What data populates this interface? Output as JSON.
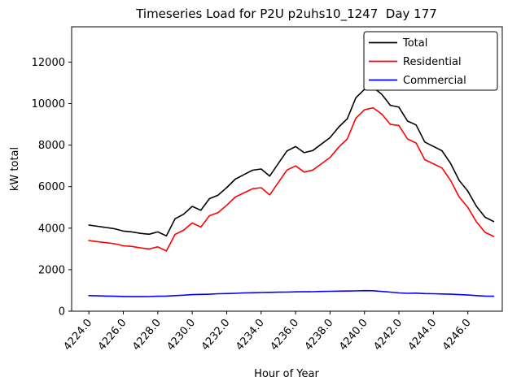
{
  "figure": {
    "title": "Timeseries Load for P2U p2uhs10_1247  Day 177",
    "xlabel": "Hour of Year",
    "ylabel": "kW total"
  },
  "chart_data": {
    "type": "line",
    "title": "Timeseries Load for P2U p2uhs10_1247  Day 177",
    "xlabel": "Hour of Year",
    "ylabel": "kW total",
    "grid": false,
    "legend_position": "upper right",
    "xlim": [
      4223.0,
      4248.0
    ],
    "ylim": [
      0,
      13700
    ],
    "xticks": {
      "values": [
        4224,
        4226,
        4228,
        4230,
        4232,
        4234,
        4236,
        4238,
        4240,
        4242,
        4244,
        4246
      ],
      "labels": [
        "4224.0",
        "4226.0",
        "4228.0",
        "4230.0",
        "4232.0",
        "4234.0",
        "4236.0",
        "4238.0",
        "4240.0",
        "4242.0",
        "4244.0",
        "4246.0"
      ]
    },
    "yticks": {
      "values": [
        0,
        2000,
        4000,
        6000,
        8000,
        10000,
        12000
      ],
      "labels": [
        "0",
        "2000",
        "4000",
        "6000",
        "8000",
        "10000",
        "12000"
      ]
    },
    "x": [
      4224.0,
      4224.5,
      4225.0,
      4225.5,
      4226.0,
      4226.5,
      4227.0,
      4227.5,
      4228.0,
      4228.5,
      4229.0,
      4229.5,
      4230.0,
      4230.5,
      4231.0,
      4231.5,
      4232.0,
      4232.5,
      4233.0,
      4233.5,
      4234.0,
      4234.5,
      4235.0,
      4235.5,
      4236.0,
      4236.5,
      4237.0,
      4237.5,
      4238.0,
      4238.5,
      4239.0,
      4239.5,
      4240.0,
      4240.5,
      4241.0,
      4241.5,
      4242.0,
      4242.5,
      4243.0,
      4243.5,
      4244.0,
      4244.5,
      4245.0,
      4245.5,
      4246.0,
      4246.5,
      4247.0,
      4247.5
    ],
    "series": [
      {
        "name": "Total",
        "color": "#000000",
        "values": [
          4150,
          4090,
          4030,
          3970,
          3860,
          3820,
          3750,
          3705,
          3820,
          3630,
          4450,
          4670,
          5050,
          4860,
          5420,
          5590,
          5950,
          6360,
          6580,
          6790,
          6850,
          6510,
          7115,
          7720,
          7930,
          7635,
          7740,
          8050,
          8360,
          8865,
          9270,
          10280,
          10690,
          10785,
          10450,
          9920,
          9830,
          9160,
          8970,
          8150,
          7940,
          7730,
          7120,
          6300,
          5780,
          5050,
          4530,
          4320
        ]
      },
      {
        "name": "Residential",
        "color": "#ff0000",
        "values": [
          3400,
          3350,
          3300,
          3250,
          3150,
          3120,
          3050,
          3000,
          3100,
          2900,
          3700,
          3900,
          4250,
          4050,
          4600,
          4750,
          5100,
          5500,
          5700,
          5900,
          5950,
          5600,
          6200,
          6800,
          7000,
          6700,
          6800,
          7100,
          7400,
          7900,
          8300,
          9300,
          9700,
          9800,
          9500,
          9000,
          8950,
          8300,
          8100,
          7300,
          7100,
          6900,
          6300,
          5500,
          5000,
          4300,
          3800,
          3600
        ]
      },
      {
        "name": "Commercial",
        "color": "#0000ff",
        "values": [
          750,
          740,
          730,
          720,
          710,
          700,
          700,
          705,
          720,
          730,
          750,
          770,
          800,
          810,
          820,
          840,
          850,
          860,
          880,
          890,
          900,
          910,
          915,
          920,
          930,
          935,
          940,
          950,
          960,
          965,
          970,
          980,
          990,
          985,
          950,
          920,
          880,
          860,
          870,
          850,
          840,
          830,
          820,
          800,
          780,
          750,
          730,
          720
        ]
      }
    ]
  },
  "legend": {
    "entries": [
      "Total",
      "Residential",
      "Commercial"
    ]
  }
}
